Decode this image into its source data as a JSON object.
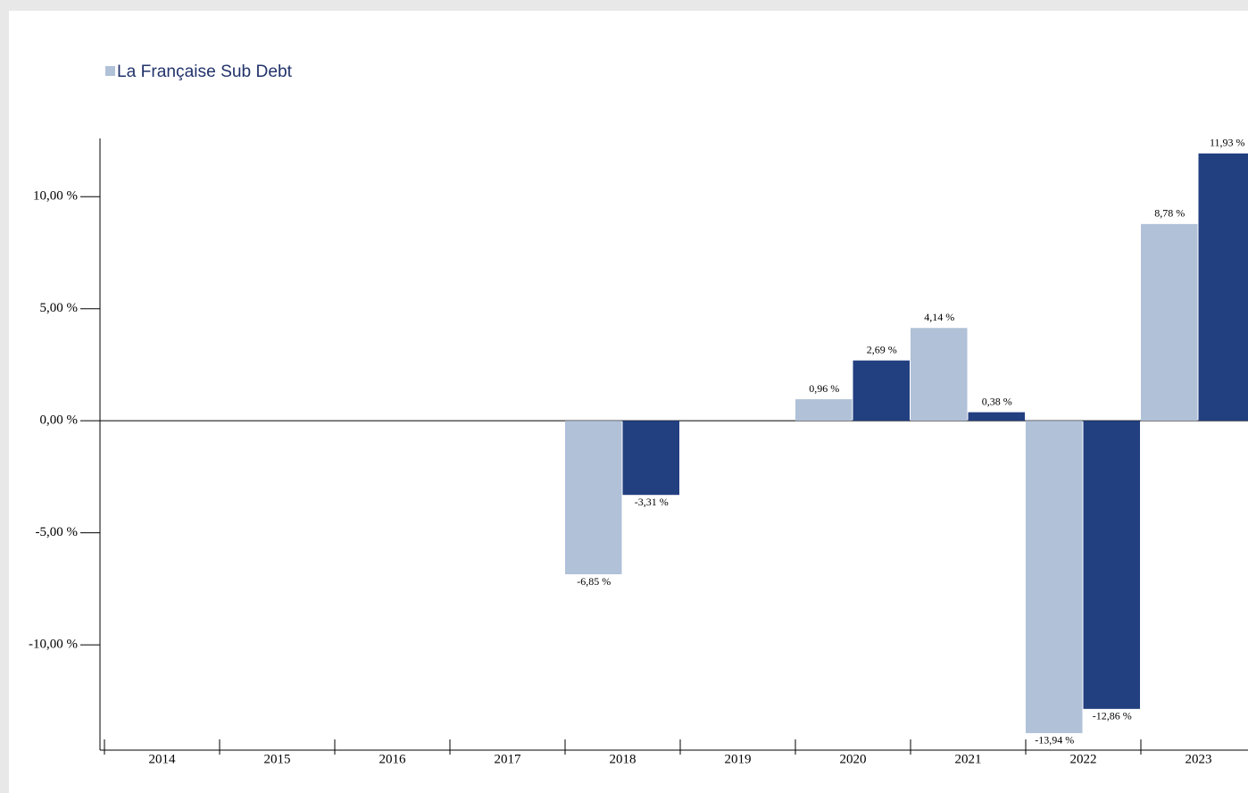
{
  "chart_data": {
    "type": "bar",
    "categories": [
      "2014",
      "2015",
      "2016",
      "2017",
      "2018",
      "2019",
      "2020",
      "2021",
      "2022",
      "2023"
    ],
    "series": [
      {
        "name": "La Française Sub Debt",
        "color": "#b0c1d8",
        "values": [
          null,
          null,
          null,
          null,
          -6.85,
          null,
          0.96,
          4.14,
          -13.94,
          8.78
        ],
        "value_labels": [
          null,
          null,
          null,
          null,
          "-6,85 %",
          null,
          "0,96 %",
          "4,14 %",
          "-13,94 %",
          "8,78 %"
        ]
      },
      {
        "color": "#223f80",
        "values": [
          null,
          null,
          null,
          null,
          -3.31,
          null,
          2.69,
          0.38,
          -12.86,
          11.93
        ],
        "value_labels": [
          null,
          null,
          null,
          null,
          "-3,31 %",
          null,
          "2,69 %",
          "0,38 %",
          "-12,86 %",
          "11,93 %"
        ]
      }
    ],
    "ylim": [
      -14.7,
      12.6
    ],
    "yticks": [
      {
        "value": -10,
        "label": "-10,00 %"
      },
      {
        "value": -5,
        "label": "-5,00 %"
      },
      {
        "value": 0,
        "label": "0,00 %"
      },
      {
        "value": 5,
        "label": "5,00 %"
      },
      {
        "value": 10,
        "label": "10,00 %"
      }
    ],
    "grid": false
  }
}
